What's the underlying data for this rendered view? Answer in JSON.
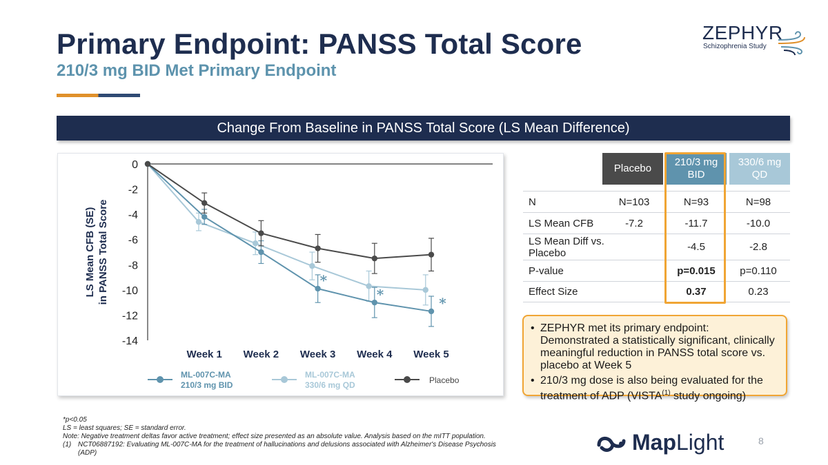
{
  "header": {
    "title": "Primary Endpoint: PANSS Total Score",
    "subtitle": "210/3 mg BID Met Primary Endpoint"
  },
  "logo": {
    "name": "ZEPHYR",
    "tagline": "Schizophrenia Study"
  },
  "banner": {
    "text": "Change From Baseline in PANSS Total Score (LS Mean Difference)"
  },
  "chart_data": {
    "type": "line",
    "ylabel_line1": "LS Mean CFB (SE)",
    "ylabel_line2": "in PANSS Total Score",
    "categories": [
      "Week 1",
      "Week 2",
      "Week 3",
      "Week 4",
      "Week 5"
    ],
    "ylim": [
      -14,
      0
    ],
    "yticks": [
      "0",
      "-2",
      "-4",
      "-6",
      "-8",
      "-10",
      "-12",
      "-14"
    ],
    "grid": false,
    "legend_position": "bottom",
    "series": [
      {
        "name": "ML-007C-MA 210/3 mg BID",
        "legend_line1": "ML-007C-MA",
        "legend_line2": "210/3 mg BID",
        "color": "#5f93ad",
        "x": [
          0,
          1,
          2,
          3,
          4,
          5
        ],
        "values": [
          0,
          -4.2,
          -7.0,
          -9.9,
          -11.0,
          -11.7
        ],
        "se": [
          0,
          0.6,
          0.9,
          1.1,
          1.2,
          1.2
        ]
      },
      {
        "name": "ML-007C-MA 330/6 mg QD",
        "legend_line1": "ML-007C-MA",
        "legend_line2": "330/6 mg QD",
        "color": "#a8c8d8",
        "x": [
          0,
          0.9,
          1.9,
          2.9,
          3.9,
          4.9
        ],
        "values": [
          0,
          -4.6,
          -6.3,
          -8.1,
          -9.7,
          -10.0
        ],
        "se": [
          0,
          0.7,
          0.9,
          1.1,
          1.2,
          1.2
        ]
      },
      {
        "name": "Placebo",
        "legend_line1": "Placebo",
        "legend_line2": "",
        "color": "#4a4a4a",
        "x": [
          0,
          1,
          2,
          3,
          4,
          5
        ],
        "values": [
          0,
          -3.1,
          -5.5,
          -6.7,
          -7.5,
          -7.2
        ],
        "se": [
          0,
          0.8,
          1.0,
          1.1,
          1.2,
          1.3
        ]
      }
    ],
    "annotations": [
      {
        "text": "*",
        "x": 3.1,
        "y": -9.2,
        "color": "#5f93ad"
      },
      {
        "text": "*",
        "x": 4.1,
        "y": -10.3,
        "color": "#5f93ad"
      },
      {
        "text": "*",
        "x": 5.2,
        "y": -11.0,
        "color": "#5f93ad"
      }
    ]
  },
  "table": {
    "headers": [
      {
        "label": "Placebo",
        "color": "#4a4a4a"
      },
      {
        "label": "210/3 mg BID",
        "color": "#5f93ad"
      },
      {
        "label": "330/6 mg QD",
        "color": "#a8c8d8"
      }
    ],
    "rows": [
      {
        "label": "N",
        "values": [
          "N=103",
          "N=93",
          "N=98"
        ]
      },
      {
        "label": "LS Mean CFB",
        "values": [
          "-7.2",
          "-11.7",
          "-10.0"
        ]
      },
      {
        "label": "LS Mean Diff vs. Placebo",
        "values": [
          "",
          "-4.5",
          "-2.8"
        ]
      },
      {
        "label": "P-value",
        "values": [
          "",
          "p=0.015",
          "p=0.110"
        ]
      },
      {
        "label": "Effect Size",
        "values": [
          "",
          "0.37",
          "0.23"
        ]
      }
    ]
  },
  "callout": {
    "bullet1": "ZEPHYR met its primary endpoint: Demonstrated a statistically significant, clinically meaningful reduction in PANSS total score vs. placebo at Week 5",
    "bullet2_before": "210/3 mg dose is also being evaluated for the treatment of ADP (VISTA",
    "bullet2_sup": "(1)",
    "bullet2_after": " study ongoing)"
  },
  "footnotes": {
    "sig": "*p<0.05",
    "ls": "LS = least squares; SE = standard error.",
    "note": "Note: Negative treatment deltas favor active treatment; effect size presented as an absolute value. Analysis based on the mITT population.",
    "ref_num": "(1)",
    "ref_text": "NCT06887192: Evaluating ML-007C-MA for the treatment of hallucinations and delusions associated with Alzheimer's Disease Psychosis (ADP)"
  },
  "brand": {
    "map": "Map",
    "light": "Light"
  },
  "page_number": "8"
}
